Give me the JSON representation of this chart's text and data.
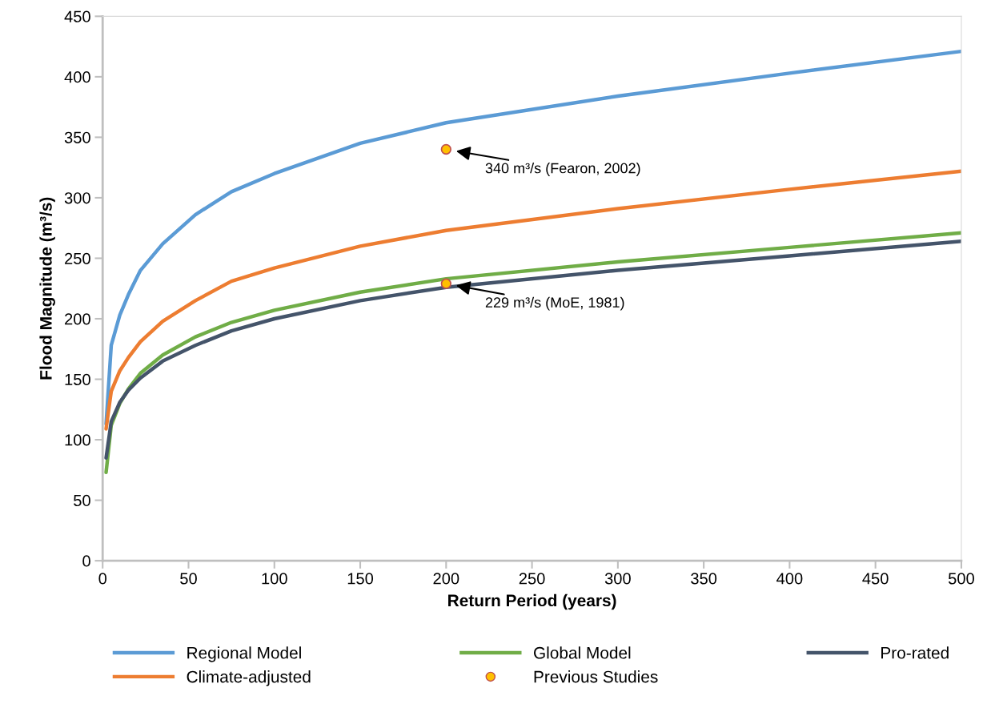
{
  "chart_data": {
    "type": "line",
    "xlabel": "Return Period (years)",
    "ylabel": "Flood Magnitude (m³/s)",
    "xlim": [
      0,
      500
    ],
    "xticks": [
      0,
      50,
      100,
      150,
      200,
      250,
      300,
      350,
      400,
      450,
      500
    ],
    "ylim": [
      0,
      450
    ],
    "yticks": [
      0,
      50,
      100,
      150,
      200,
      250,
      300,
      350,
      400,
      450
    ],
    "grid": false,
    "legend": "bottom",
    "marker": "none",
    "line_style": "solid",
    "series": [
      {
        "name": "Regional Model",
        "color": "#5b9bd5",
        "x": [
          2,
          5,
          10,
          15,
          22,
          35,
          54,
          75,
          100,
          150,
          200,
          300,
          400,
          500
        ],
        "values": [
          113,
          178,
          203,
          220,
          240,
          262,
          286,
          305,
          320,
          345,
          362,
          384,
          403,
          421
        ]
      },
      {
        "name": "Global Model",
        "color": "#70ad47",
        "x": [
          2,
          5,
          10,
          15,
          22,
          35,
          54,
          75,
          100,
          150,
          200,
          300,
          400,
          500
        ],
        "values": [
          73,
          112,
          130,
          142,
          155,
          170,
          185,
          197,
          207,
          222,
          233,
          247,
          259,
          271
        ]
      },
      {
        "name": "Pro-rated",
        "color": "#44546a",
        "x": [
          2,
          5,
          10,
          15,
          22,
          35,
          54,
          75,
          100,
          150,
          200,
          300,
          400,
          500
        ],
        "values": [
          85,
          115,
          131,
          141,
          151,
          165,
          178,
          190,
          200,
          215,
          226,
          240,
          252,
          264
        ]
      },
      {
        "name": "Climate-adjusted",
        "color": "#ed7d31",
        "x": [
          2,
          5,
          10,
          15,
          22,
          35,
          54,
          75,
          100,
          150,
          200,
          300,
          400,
          500
        ],
        "values": [
          109,
          140,
          157,
          168,
          181,
          198,
          215,
          231,
          242,
          260,
          273,
          291,
          307,
          322
        ]
      },
      {
        "name": "Previous Studies",
        "type": "scatter",
        "marker": "circle",
        "color": "#ffc000",
        "x": [
          200,
          200
        ],
        "values": [
          340,
          229
        ]
      }
    ],
    "annotations": [
      {
        "text": "340 m³/s (Fearon, 2002)",
        "x": 200,
        "y": 340
      },
      {
        "text": "229 m³/s (MoE, 1981)",
        "x": 200,
        "y": 229
      }
    ]
  }
}
